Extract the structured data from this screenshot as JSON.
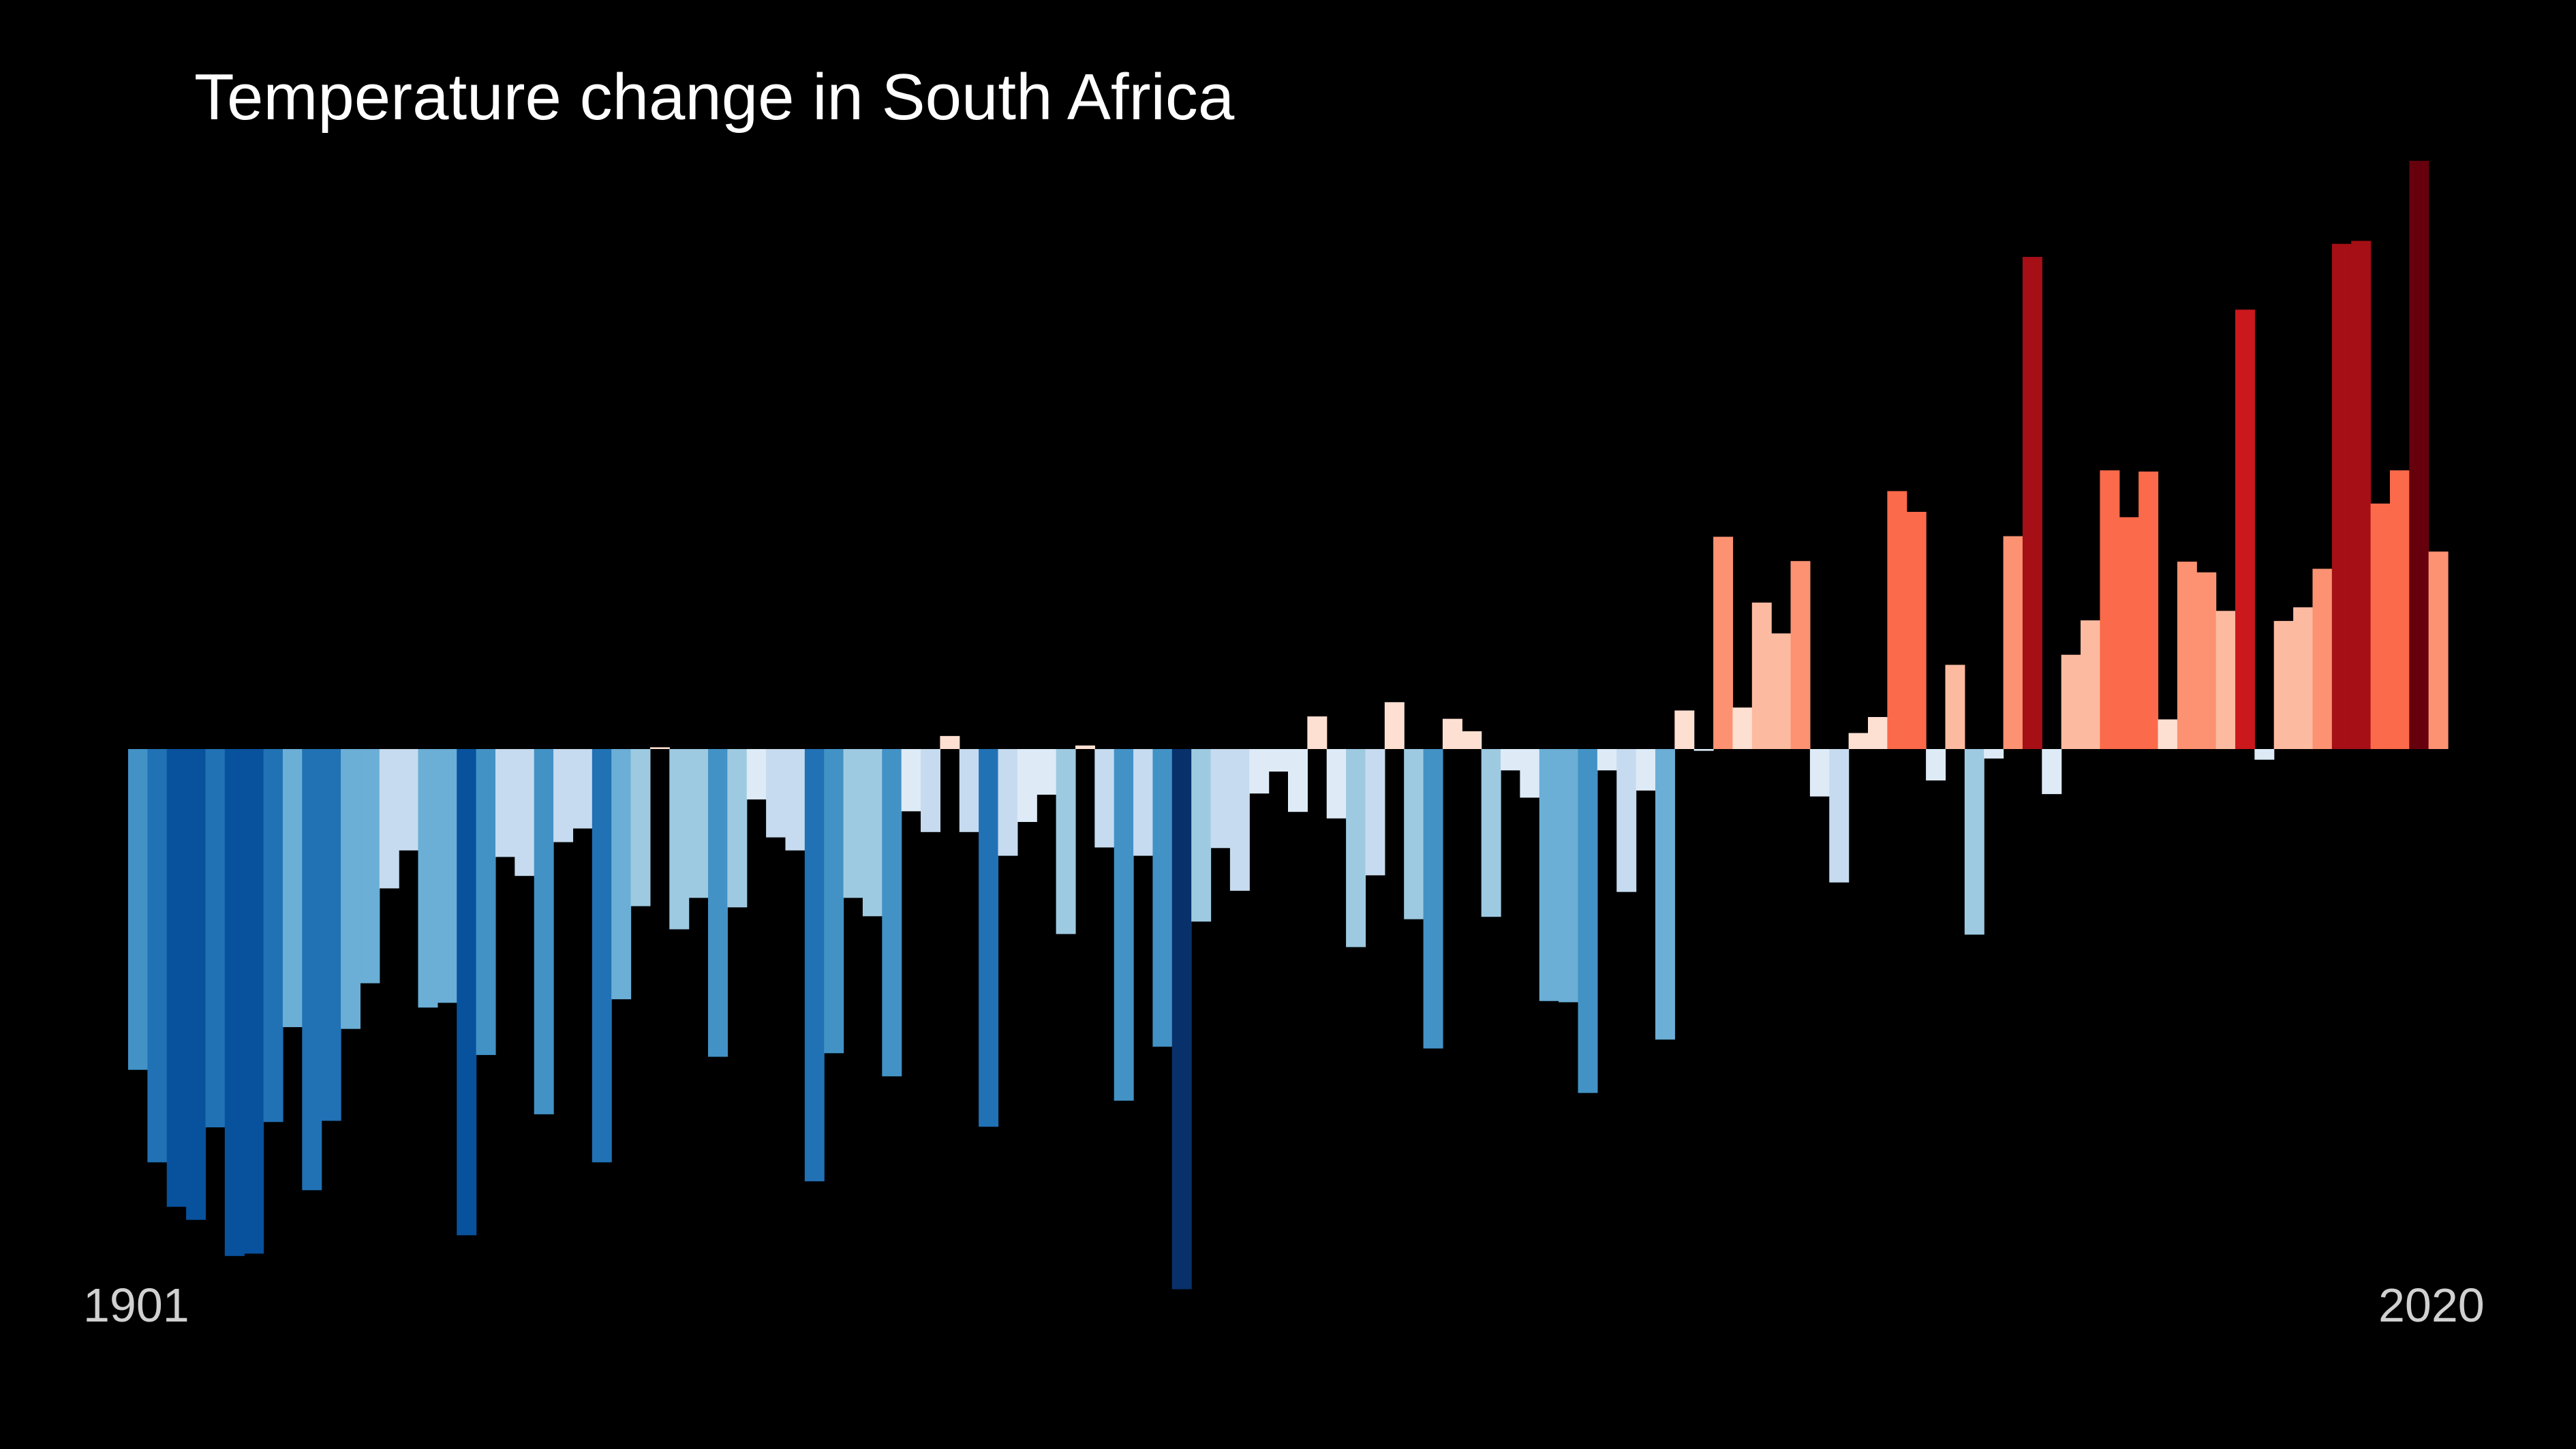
{
  "chart_data": {
    "type": "bar",
    "title": "Temperature change in South Africa",
    "start_label": "1901",
    "end_label": "2020",
    "x": [
      1901,
      1902,
      1903,
      1904,
      1905,
      1906,
      1907,
      1908,
      1909,
      1910,
      1911,
      1912,
      1913,
      1914,
      1915,
      1916,
      1917,
      1918,
      1919,
      1920,
      1921,
      1922,
      1923,
      1924,
      1925,
      1926,
      1927,
      1928,
      1929,
      1930,
      1931,
      1932,
      1933,
      1934,
      1935,
      1936,
      1937,
      1938,
      1939,
      1940,
      1941,
      1942,
      1943,
      1944,
      1945,
      1946,
      1947,
      1948,
      1949,
      1950,
      1951,
      1952,
      1953,
      1954,
      1955,
      1956,
      1957,
      1958,
      1959,
      1960,
      1961,
      1962,
      1963,
      1964,
      1965,
      1966,
      1967,
      1968,
      1969,
      1970,
      1971,
      1972,
      1973,
      1974,
      1975,
      1976,
      1977,
      1978,
      1979,
      1980,
      1981,
      1982,
      1983,
      1984,
      1985,
      1986,
      1987,
      1988,
      1989,
      1990,
      1991,
      1992,
      1993,
      1994,
      1995,
      1996,
      1997,
      1998,
      1999,
      2000,
      2001,
      2002,
      2003,
      2004,
      2005,
      2006,
      2007,
      2008,
      2009,
      2010,
      2011,
      2012,
      2013,
      2014,
      2015,
      2016,
      2017,
      2018,
      2019,
      2020
    ],
    "values": [
      -0.541,
      -0.697,
      -0.772,
      -0.794,
      -0.638,
      -0.855,
      -0.851,
      -0.629,
      -0.469,
      -0.744,
      -0.627,
      -0.472,
      -0.395,
      -0.235,
      -0.171,
      -0.436,
      -0.428,
      -0.82,
      -0.516,
      -0.182,
      -0.214,
      -0.616,
      -0.157,
      -0.134,
      -0.697,
      -0.422,
      -0.265,
      0.003,
      -0.304,
      -0.251,
      -0.519,
      -0.267,
      -0.085,
      -0.149,
      -0.171,
      -0.729,
      -0.513,
      -0.251,
      -0.282,
      -0.552,
      -0.105,
      -0.14,
      0.022,
      -0.14,
      -0.637,
      -0.18,
      -0.123,
      -0.077,
      -0.312,
      0.006,
      -0.166,
      -0.593,
      -0.18,
      -0.502,
      -0.911,
      -0.291,
      -0.167,
      -0.239,
      -0.075,
      -0.038,
      -0.106,
      0.055,
      -0.117,
      -0.334,
      -0.213,
      0.079,
      -0.287,
      -0.505,
      0.051,
      0.03,
      -0.283,
      -0.036,
      -0.082,
      -0.425,
      -0.427,
      -0.58,
      -0.036,
      -0.241,
      -0.07,
      -0.49,
      0.065,
      -0.003,
      0.358,
      0.07,
      0.247,
      0.195,
      0.317,
      -0.08,
      -0.225,
      0.027,
      0.054,
      0.435,
      0.4,
      -0.053,
      0.142,
      -0.313,
      -0.016,
      0.359,
      0.83,
      -0.076,
      0.159,
      0.217,
      0.47,
      0.391,
      0.468,
      0.05,
      0.316,
      0.298,
      0.233,
      0.741,
      -0.018,
      0.216,
      0.239,
      0.304,
      0.852,
      0.857,
      0.414,
      0.47,
      0.992,
      0.333
    ],
    "ylim": [
      -0.95,
      1.05
    ],
    "colormap": [
      "#08306b",
      "#08519c",
      "#2171b5",
      "#4292c6",
      "#6baed6",
      "#9ecae1",
      "#c6dbef",
      "#deebf7",
      "#fee0d2",
      "#fcbba1",
      "#fc9272",
      "#fb6a4a",
      "#ef3b2c",
      "#cb181d",
      "#a50f15",
      "#67000d"
    ]
  }
}
